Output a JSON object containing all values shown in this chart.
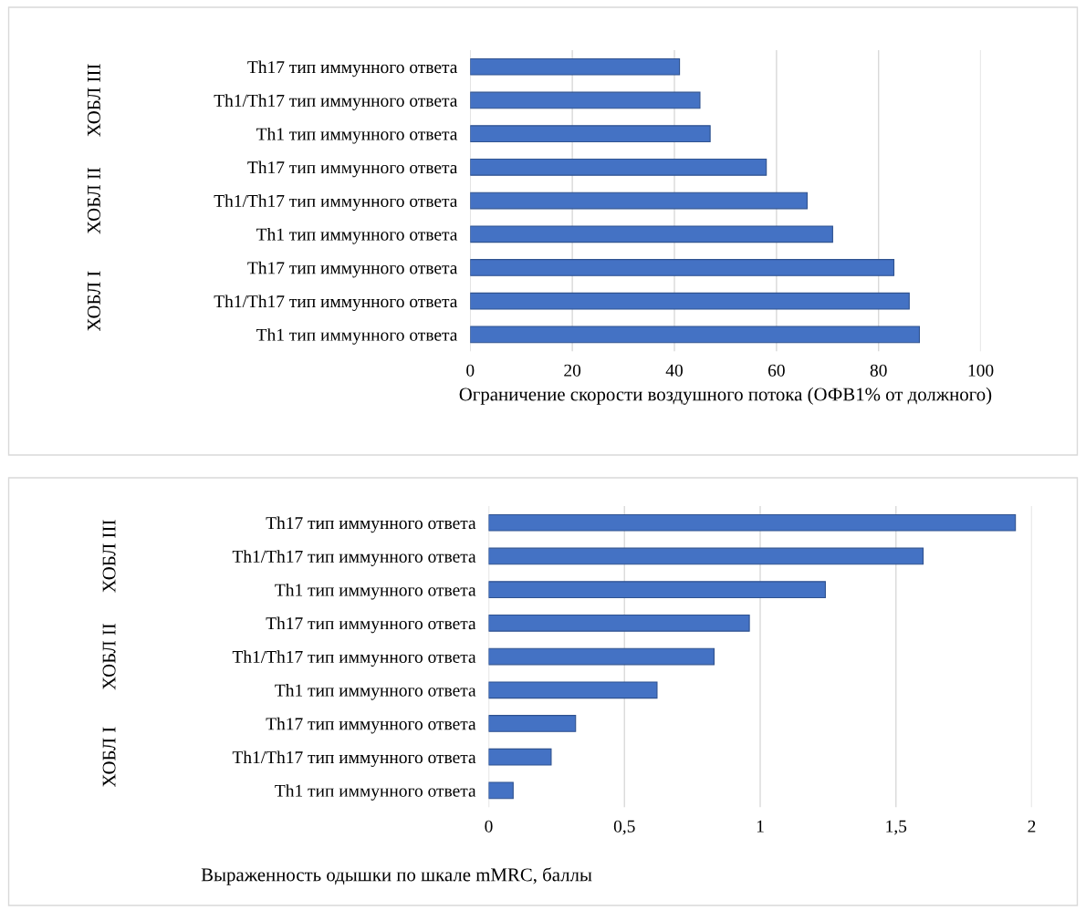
{
  "chart_data": [
    {
      "type": "bar",
      "orientation": "horizontal",
      "xlabel": "Ограничение скорости воздушного потока (ОФВ1% от должного)",
      "categories": [
        "Th17 тип иммунного ответа",
        "Th1/Th17 тип иммунного ответа",
        "Th1 тип иммунного ответа",
        "Th17 тип иммунного ответа",
        "Th1/Th17 тип иммунного ответа",
        "Th1 тип иммунного ответа",
        "Th17 тип иммунного ответа",
        "Th1/Th17 тип иммунного ответа",
        "Th1 тип иммунного ответа"
      ],
      "values": [
        41,
        45,
        47,
        58,
        66,
        71,
        83,
        86,
        88
      ],
      "color": "#4472c4",
      "xlim": [
        0,
        100
      ],
      "xticks": [
        0,
        20,
        40,
        60,
        80,
        100
      ],
      "grid": "x",
      "annotations": [
        "ХОБЛ III",
        "ХОБЛ II",
        "ХОБЛ I"
      ]
    },
    {
      "type": "bar",
      "orientation": "horizontal",
      "xlabel": "Выраженность одышки по шкале mMRC, баллы",
      "categories": [
        "Th17 тип иммунного ответа",
        "Th1/Th17 тип иммунного ответа",
        "Th1 тип иммунного ответа",
        "Th17 тип иммунного ответа",
        "Th1/Th17 тип иммунного ответа",
        "Th1 тип иммунного ответа",
        "Th17 тип иммунного ответа",
        "Th1/Th17 тип иммунного ответа",
        "Th1 тип иммунного ответа"
      ],
      "values": [
        1.94,
        1.6,
        1.24,
        0.96,
        0.83,
        0.62,
        0.32,
        0.23,
        0.09
      ],
      "color": "#4472c4",
      "xlim": [
        0,
        2
      ],
      "xticks": [
        0,
        {
          "value": 0.5,
          "label": "0,5"
        },
        1,
        {
          "value": 1.5,
          "label": "1,5"
        },
        2
      ],
      "grid": "x",
      "annotations": [
        "ХОБЛ III",
        "ХОБЛ II",
        "ХОБЛ I"
      ]
    }
  ]
}
